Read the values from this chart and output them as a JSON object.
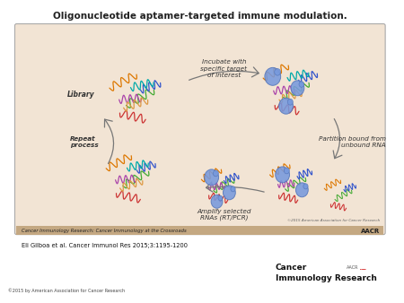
{
  "title": "Oligonucleotide aptamer-targeted immune modulation.",
  "title_fontsize": 7.5,
  "title_fontweight": "bold",
  "title_color": "#222222",
  "bg_color": "#ffffff",
  "panel_bg": "#f2e4d4",
  "panel_border": "#aaaaaa",
  "footer_bar_color": "#c4a882",
  "footer_italic_text": "Cancer Immunology Research: Cancer Immunology at the Crossroads",
  "footer_right_text": "AACR",
  "citation_text": "Eli Gilboa et al. Cancer Immunol Res 2015;3:1195-1200",
  "bottom_left_text": "©2015 by American Association for Cancer Research",
  "bottom_right_text1": "Cancer",
  "bottom_right_text2": "Immunology Research",
  "label_library": "Library",
  "label_incubate": "Incubate with\nspecific target\nof interest",
  "label_partition": "Partition bound from\nunbound RNA",
  "label_amplify": "Amplify selected\nRNAs (RT/PCR)",
  "label_repeat": "Repeat\nprocess",
  "label_copyright": "©2015 American Association for Cancer Research",
  "arrow_color": "#777777",
  "text_color": "#333333",
  "wavy_colors": [
    "#cc3333",
    "#dd7700",
    "#44aa33",
    "#3355cc",
    "#aa44aa",
    "#00aaaa",
    "#dd9944"
  ],
  "blob_color": "#7799dd",
  "blob_edge": "#5577bb"
}
